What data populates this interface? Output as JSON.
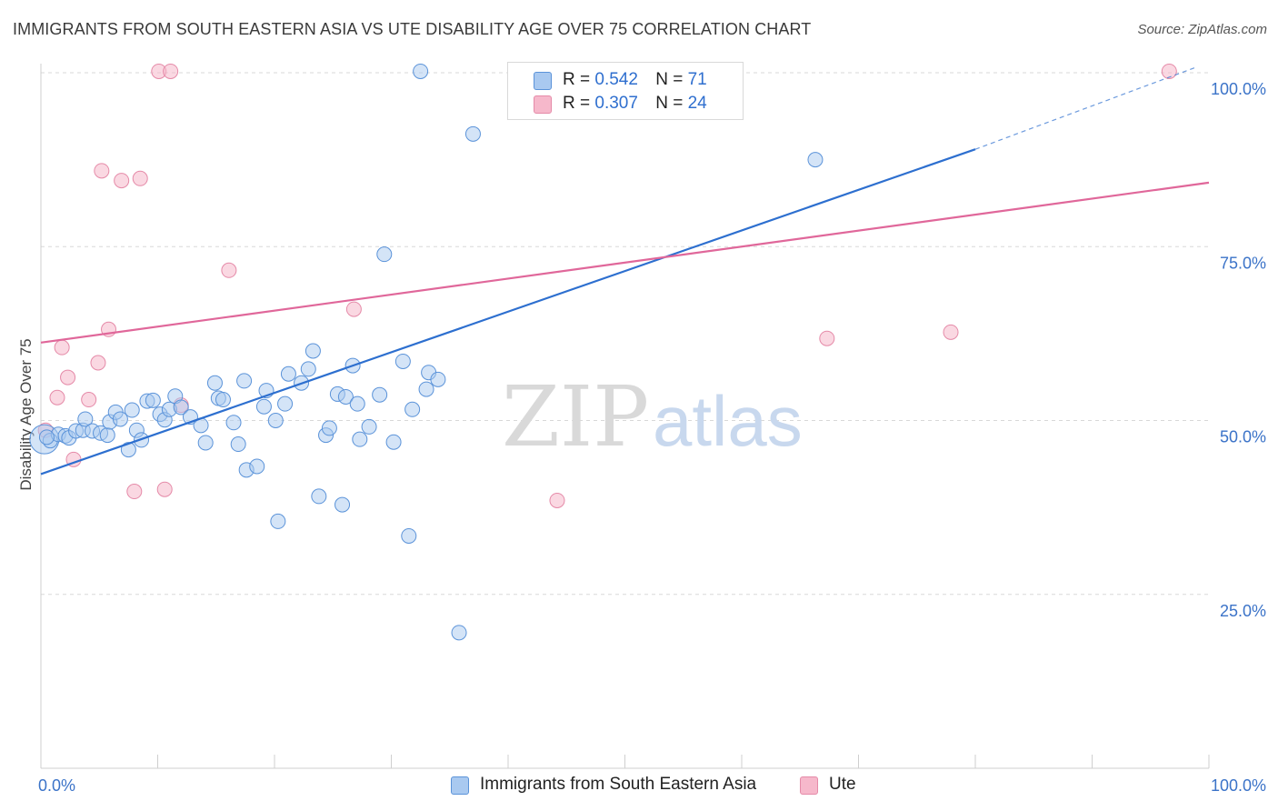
{
  "title": "IMMIGRANTS FROM SOUTH EASTERN ASIA VS UTE DISABILITY AGE OVER 75 CORRELATION CHART",
  "source": "Source: ZipAtlas.com",
  "watermark": {
    "zip": "ZIP",
    "atlas": "atlas"
  },
  "legend": {
    "row1": {
      "r_label": "R = ",
      "r_value": "0.542",
      "n_label": "N = ",
      "n_value": "71"
    },
    "row2": {
      "r_label": "R = ",
      "r_value": "0.307",
      "n_label": "N = ",
      "n_value": "24"
    }
  },
  "bottom_legend": {
    "series1": "Immigrants from South Eastern Asia",
    "series2": "Ute"
  },
  "colors": {
    "blue_fill": "#a9c9f0",
    "blue_stroke": "#5b93d9",
    "blue_line": "#2d6fcf",
    "pink_fill": "#f6b8cb",
    "pink_stroke": "#e58aa8",
    "pink_line": "#e0679a",
    "tick_text": "#3b73c8",
    "grid": "#d8d8d8"
  },
  "chart_data": {
    "type": "scatter",
    "title": "IMMIGRANTS FROM SOUTH EASTERN ASIA VS UTE DISABILITY AGE OVER 75 CORRELATION CHART",
    "xlabel": "",
    "ylabel": "Disability Age Over 75",
    "xlim": [
      0,
      100
    ],
    "ylim": [
      0,
      100
    ],
    "x_ticks": [
      "0.0%",
      "100.0%"
    ],
    "y_ticks": [
      {
        "value": 25,
        "label": "25.0%"
      },
      {
        "value": 50,
        "label": "50.0%"
      },
      {
        "value": 75,
        "label": "75.0%"
      },
      {
        "value": 100,
        "label": "100.0%"
      }
    ],
    "grid": true,
    "legend_placement": "top-center",
    "series": [
      {
        "name": "Immigrants from South Eastern Asia",
        "r": 0.542,
        "n": 71,
        "trend": {
          "x0": 0,
          "y0": 42.3,
          "x1": 80,
          "y1": 89.0,
          "dashed_to_x": 100,
          "dashed_to_y": 100.7
        },
        "points": [
          [
            0.3,
            47.3
          ],
          [
            0.8,
            47.1
          ],
          [
            1.5,
            48.0
          ],
          [
            2.1,
            47.8
          ],
          [
            2.4,
            47.5
          ],
          [
            3.0,
            48.5
          ],
          [
            3.6,
            48.6
          ],
          [
            3.8,
            50.2
          ],
          [
            4.4,
            48.5
          ],
          [
            5.1,
            48.2
          ],
          [
            5.7,
            47.9
          ],
          [
            5.9,
            49.8
          ],
          [
            6.4,
            51.2
          ],
          [
            6.8,
            50.2
          ],
          [
            7.5,
            45.8
          ],
          [
            7.8,
            51.5
          ],
          [
            8.2,
            48.6
          ],
          [
            8.6,
            47.2
          ],
          [
            9.1,
            52.8
          ],
          [
            9.6,
            52.9
          ],
          [
            10.2,
            50.9
          ],
          [
            10.6,
            50.1
          ],
          [
            11.0,
            51.6
          ],
          [
            11.5,
            53.5
          ],
          [
            12.0,
            51.9
          ],
          [
            12.8,
            50.5
          ],
          [
            13.7,
            49.3
          ],
          [
            14.1,
            46.8
          ],
          [
            14.9,
            55.4
          ],
          [
            15.2,
            53.2
          ],
          [
            15.6,
            53.0
          ],
          [
            16.5,
            49.7
          ],
          [
            16.9,
            46.6
          ],
          [
            17.4,
            55.7
          ],
          [
            17.6,
            42.9
          ],
          [
            18.5,
            43.4
          ],
          [
            19.1,
            52.0
          ],
          [
            19.3,
            54.3
          ],
          [
            20.1,
            50.0
          ],
          [
            20.3,
            35.5
          ],
          [
            20.9,
            52.4
          ],
          [
            21.2,
            56.7
          ],
          [
            22.3,
            55.4
          ],
          [
            22.9,
            57.4
          ],
          [
            23.3,
            60.0
          ],
          [
            23.8,
            39.1
          ],
          [
            24.4,
            47.9
          ],
          [
            24.7,
            48.9
          ],
          [
            25.4,
            53.8
          ],
          [
            25.8,
            37.9
          ],
          [
            26.1,
            53.4
          ],
          [
            26.7,
            57.9
          ],
          [
            27.1,
            52.4
          ],
          [
            27.3,
            47.3
          ],
          [
            28.1,
            49.1
          ],
          [
            29.0,
            53.7
          ],
          [
            29.4,
            73.9
          ],
          [
            30.2,
            46.9
          ],
          [
            31.0,
            58.5
          ],
          [
            31.5,
            33.4
          ],
          [
            31.8,
            51.6
          ],
          [
            33.0,
            54.5
          ],
          [
            33.2,
            56.9
          ],
          [
            34.0,
            55.9
          ],
          [
            37.0,
            91.2
          ],
          [
            35.8,
            19.5
          ],
          [
            32.5,
            100.2
          ],
          [
            42.8,
            100.3
          ],
          [
            47.5,
            100.4
          ],
          [
            66.3,
            87.5
          ],
          [
            0.5,
            47.6
          ]
        ]
      },
      {
        "name": "Ute",
        "r": 0.307,
        "n": 24,
        "trend": {
          "x0": 0,
          "y0": 61.2,
          "x1": 100,
          "y1": 84.2
        },
        "points": [
          [
            0.4,
            48.6
          ],
          [
            1.4,
            53.3
          ],
          [
            1.8,
            60.5
          ],
          [
            2.3,
            56.2
          ],
          [
            2.8,
            44.4
          ],
          [
            4.1,
            53.0
          ],
          [
            4.9,
            58.3
          ],
          [
            5.2,
            85.9
          ],
          [
            5.8,
            63.1
          ],
          [
            6.9,
            84.5
          ],
          [
            8.0,
            39.8
          ],
          [
            8.5,
            84.8
          ],
          [
            10.1,
            100.2
          ],
          [
            11.1,
            100.2
          ],
          [
            10.6,
            40.1
          ],
          [
            12.0,
            52.2
          ],
          [
            16.1,
            71.6
          ],
          [
            26.8,
            66.0
          ],
          [
            44.2,
            38.5
          ],
          [
            67.3,
            61.8
          ],
          [
            77.9,
            62.7
          ],
          [
            96.6,
            100.2
          ],
          [
            57.1,
            100.2
          ],
          [
            46.0,
            100.2
          ]
        ]
      }
    ]
  }
}
